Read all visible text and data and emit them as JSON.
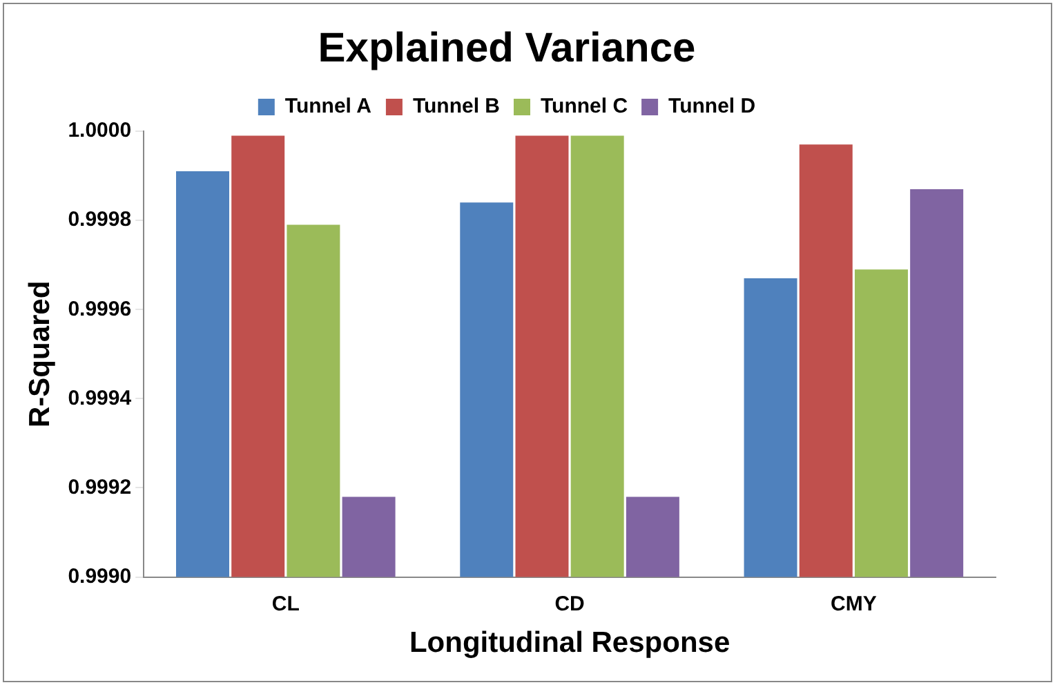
{
  "chart_data": {
    "type": "bar",
    "title": "Explained Variance",
    "xlabel": "Longitudinal Response",
    "ylabel": "R-Squared",
    "categories": [
      "CL",
      "CD",
      "CMY"
    ],
    "series": [
      {
        "name": "Tunnel A",
        "color": "#4f81bd",
        "values": [
          0.99991,
          0.99984,
          0.99967
        ]
      },
      {
        "name": "Tunnel B",
        "color": "#c0504d",
        "values": [
          0.99999,
          0.99999,
          0.99997
        ]
      },
      {
        "name": "Tunnel C",
        "color": "#9bbb59",
        "values": [
          0.99979,
          0.99999,
          0.99969
        ]
      },
      {
        "name": "Tunnel D",
        "color": "#8064a2",
        "values": [
          0.99918,
          0.99918,
          0.99987
        ]
      }
    ],
    "ylim": [
      0.999,
      1.0
    ],
    "yticks": [
      {
        "value": 0.999,
        "label": "0.9990"
      },
      {
        "value": 0.9992,
        "label": "0.9992"
      },
      {
        "value": 0.9994,
        "label": "0.9994"
      },
      {
        "value": 0.9996,
        "label": "0.9996"
      },
      {
        "value": 0.9998,
        "label": "0.9998"
      },
      {
        "value": 1.0,
        "label": "1.0000"
      }
    ],
    "grid": false,
    "legend": "top"
  }
}
